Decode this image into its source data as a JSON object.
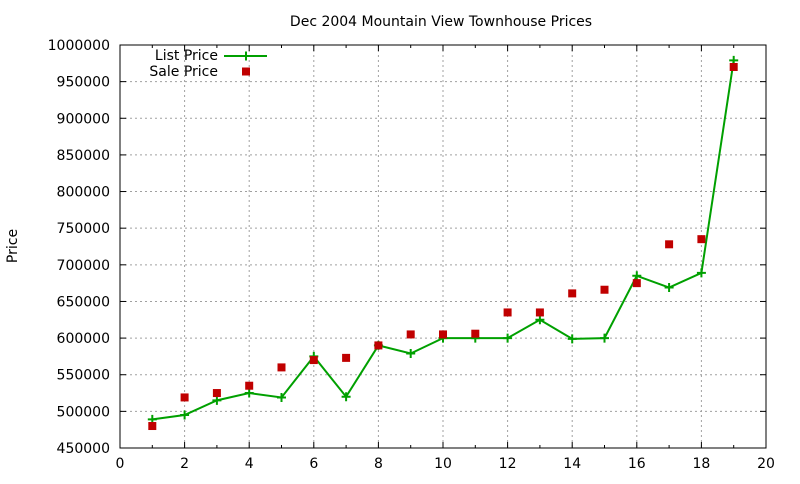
{
  "chart_data": {
    "type": "line",
    "title": "Dec 2004 Mountain View Townhouse Prices",
    "xlabel": "",
    "ylabel": "Price",
    "xlim": [
      0,
      20
    ],
    "ylim": [
      450000,
      1000000
    ],
    "x_ticks": [
      0,
      2,
      4,
      6,
      8,
      10,
      12,
      14,
      16,
      18,
      20
    ],
    "y_ticks": [
      450000,
      500000,
      550000,
      600000,
      650000,
      700000,
      750000,
      800000,
      850000,
      900000,
      950000,
      1000000
    ],
    "grid": true,
    "legend_position": "top-left",
    "series": [
      {
        "name": "List Price",
        "style": "line-with-plus-markers",
        "color": "#00a000",
        "x": [
          1,
          2,
          3,
          4,
          5,
          6,
          7,
          8,
          9,
          10,
          11,
          12,
          13,
          14,
          15,
          16,
          17,
          18,
          19
        ],
        "y": [
          489000,
          495000,
          515000,
          525000,
          519000,
          575000,
          520000,
          590000,
          579000,
          600000,
          600000,
          600000,
          625000,
          599000,
          600000,
          685000,
          669000,
          689000,
          979000
        ]
      },
      {
        "name": "Sale Price",
        "style": "square-markers",
        "color": "#c00000",
        "x": [
          1,
          2,
          3,
          4,
          5,
          6,
          7,
          8,
          9,
          10,
          11,
          12,
          13,
          14,
          15,
          16,
          17,
          18,
          19
        ],
        "y": [
          480000,
          519000,
          525000,
          535000,
          560000,
          570000,
          573000,
          590000,
          605000,
          605000,
          606000,
          635000,
          635000,
          661000,
          666000,
          675000,
          728000,
          735000,
          970000
        ]
      }
    ]
  }
}
